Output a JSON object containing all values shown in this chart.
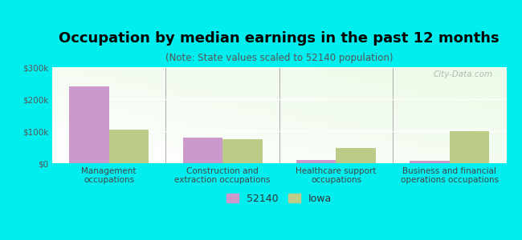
{
  "title": "Occupation by median earnings in the past 12 months",
  "subtitle": "(Note: State values scaled to 52140 population)",
  "categories": [
    "Management\noccupations",
    "Construction and\nextraction occupations",
    "Healthcare support\noccupations",
    "Business and financial\noperations occupations"
  ],
  "values_52140": [
    240000,
    80000,
    10000,
    8000
  ],
  "values_iowa": [
    105000,
    75000,
    47000,
    100000
  ],
  "color_52140": "#cc99cc",
  "color_iowa": "#bbcc88",
  "ylim": [
    0,
    300000
  ],
  "yticks": [
    0,
    100000,
    200000,
    300000
  ],
  "ytick_labels": [
    "$0",
    "$100k",
    "$200k",
    "$300k"
  ],
  "background_color": "#00eeee",
  "plot_bg_color": "#eef5e8",
  "legend_labels": [
    "52140",
    "Iowa"
  ],
  "watermark": "City-Data.com",
  "bar_width": 0.35,
  "title_fontsize": 13,
  "subtitle_fontsize": 8.5,
  "tick_fontsize": 7.5,
  "legend_fontsize": 9
}
